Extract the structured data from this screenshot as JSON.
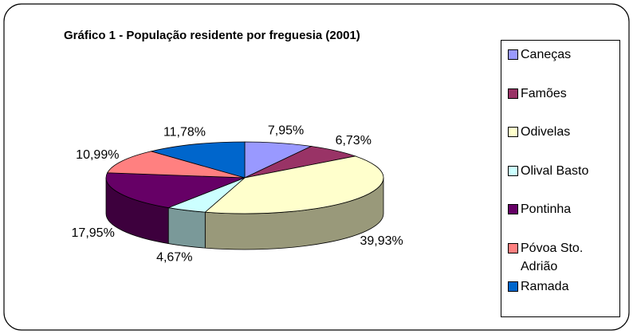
{
  "chart_data": {
    "type": "pie3d",
    "title": "Gráfico 1 - População residente por freguesia (2001)",
    "categories": [
      "Caneças",
      "Famões",
      "Odivelas",
      "Olival Basto",
      "Pontinha",
      "Póvoa Sto. Adrião",
      "Ramada"
    ],
    "values": [
      7.95,
      6.73,
      39.93,
      4.67,
      17.95,
      10.99,
      11.78
    ],
    "value_labels": [
      "7,95%",
      "6,73%",
      "39,93%",
      "4,67%",
      "17,95%",
      "10,99%",
      "11,78%"
    ],
    "colors": [
      "#9999ff",
      "#993366",
      "#ffffcc",
      "#ccffff",
      "#660066",
      "#ff8080",
      "#0066cc"
    ],
    "legend": "right"
  }
}
